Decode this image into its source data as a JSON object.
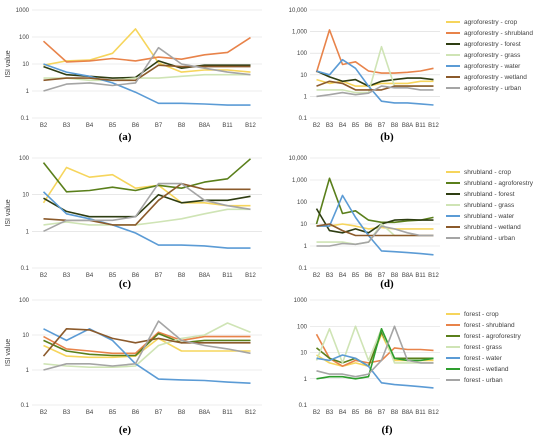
{
  "colors": {
    "crop": "#f6d55c",
    "shrubland": "#e8834a",
    "forest": "#2e3d12",
    "grass": "#cfe4b5",
    "water": "#5b9bd5",
    "wetland": "#8b5a2b",
    "urban": "#a5a5a5",
    "agroforestry": "#5a7f1b",
    "forest_green": "#2e9e2e"
  },
  "chart_data": [
    {
      "id": "a",
      "label": "(a)",
      "type": "line",
      "yscale": "log",
      "ylim": [
        0.1,
        1000
      ],
      "yticks": [
        "0.1",
        "1",
        "10",
        "100",
        "1000"
      ],
      "ylabel": "ISI value",
      "categories": [
        "B2",
        "B3",
        "B4",
        "B5",
        "B6",
        "B7",
        "B8",
        "B8A",
        "B11",
        "B12"
      ],
      "series": [
        {
          "color_key": "crop",
          "values": [
            9,
            13,
            14,
            25,
            200,
            11,
            5,
            6,
            6,
            5
          ]
        },
        {
          "color_key": "shrubland",
          "values": [
            70,
            12,
            13,
            16,
            13,
            18,
            15,
            22,
            27,
            95
          ]
        },
        {
          "color_key": "forest",
          "values": [
            8,
            4,
            3.5,
            3,
            3.2,
            13,
            7,
            9,
            9,
            9
          ]
        },
        {
          "color_key": "grass",
          "values": [
            3,
            3,
            2.5,
            2.5,
            3,
            3,
            3.5,
            4,
            4,
            4
          ]
        },
        {
          "color_key": "water",
          "values": [
            10,
            5,
            3.5,
            2,
            0.9,
            0.35,
            0.35,
            0.33,
            0.3,
            0.3
          ]
        },
        {
          "color_key": "wetland",
          "values": [
            2.5,
            3,
            3,
            2.5,
            2.5,
            9,
            8,
            8,
            8,
            8
          ]
        },
        {
          "color_key": "urban",
          "values": [
            1,
            1.8,
            2,
            1.6,
            2,
            40,
            10,
            7,
            5,
            4
          ]
        }
      ]
    },
    {
      "id": "b",
      "label": "(b)",
      "type": "line",
      "yscale": "log",
      "ylim": [
        0.1,
        10000
      ],
      "yticks": [
        "0.1",
        "1",
        "10",
        "100",
        "1,000",
        "10,000"
      ],
      "ylabel": "",
      "categories": [
        "B2",
        "B3",
        "B4",
        "B5",
        "B6",
        "B7",
        "B8",
        "B8A",
        "B11",
        "B12"
      ],
      "series": [
        {
          "color_key": "crop",
          "values": [
            6,
            4,
            5,
            3,
            3,
            4,
            4,
            4,
            5,
            5
          ]
        },
        {
          "color_key": "shrubland",
          "values": [
            13,
            1200,
            30,
            40,
            15,
            12,
            12,
            13,
            15,
            20
          ]
        },
        {
          "color_key": "forest",
          "values": [
            15,
            8,
            5,
            6,
            3,
            5,
            6,
            7,
            7,
            6
          ]
        },
        {
          "color_key": "grass",
          "values": [
            2,
            2,
            2,
            1.5,
            1.5,
            200,
            3,
            3,
            3,
            3
          ]
        },
        {
          "color_key": "water",
          "values": [
            15,
            10,
            50,
            20,
            3,
            0.6,
            0.5,
            0.5,
            0.45,
            0.4
          ]
        },
        {
          "color_key": "wetland",
          "values": [
            3,
            5,
            4,
            2,
            2,
            2,
            3,
            3,
            3,
            3
          ]
        },
        {
          "color_key": "urban",
          "values": [
            1,
            1.2,
            1.5,
            1.2,
            1.4,
            3,
            2.5,
            2.5,
            2,
            2
          ]
        }
      ],
      "legend": [
        "agroforestry - crop",
        "agroforestry - shrubland",
        "agroforestry - forest",
        "agroforestry - grass",
        "agroforestry - water",
        "agroforestry - wetland",
        "agroforestry - urban"
      ]
    },
    {
      "id": "c",
      "label": "(c)",
      "type": "line",
      "yscale": "log",
      "ylim": [
        0.1,
        100
      ],
      "yticks": [
        "0.1",
        "1",
        "10",
        "100"
      ],
      "ylabel": "ISI value",
      "categories": [
        "B2",
        "B3",
        "B4",
        "B5",
        "B6",
        "B7",
        "B8",
        "B8A",
        "B11",
        "B12"
      ],
      "series": [
        {
          "color_key": "crop",
          "values": [
            6,
            55,
            30,
            35,
            15,
            18,
            6,
            6,
            5,
            5
          ]
        },
        {
          "color_key": "agroforestry",
          "values": [
            75,
            12,
            13,
            16,
            13,
            18,
            15,
            22,
            27,
            95
          ]
        },
        {
          "color_key": "forest",
          "values": [
            8,
            3.5,
            2.5,
            2.5,
            2.5,
            10,
            6,
            7,
            7,
            9
          ]
        },
        {
          "color_key": "grass",
          "values": [
            1.5,
            1.8,
            1.5,
            1.5,
            1.5,
            1.8,
            2.2,
            3,
            4,
            4
          ]
        },
        {
          "color_key": "water",
          "values": [
            12,
            3,
            2.2,
            1.5,
            0.9,
            0.42,
            0.42,
            0.4,
            0.35,
            0.35
          ]
        },
        {
          "color_key": "wetland",
          "values": [
            2.2,
            2,
            2,
            1.5,
            1.5,
            7,
            20,
            14,
            14,
            14
          ]
        },
        {
          "color_key": "urban",
          "values": [
            1,
            2,
            2,
            2,
            2.5,
            20,
            20,
            7,
            5,
            4
          ]
        }
      ]
    },
    {
      "id": "d",
      "label": "(d)",
      "type": "line",
      "yscale": "log",
      "ylim": [
        0.1,
        10000
      ],
      "yticks": [
        "0.1",
        "1",
        "10",
        "100",
        "1,000",
        "10,000"
      ],
      "ylabel": "",
      "categories": [
        "B2",
        "B3",
        "B4",
        "B5",
        "B6",
        "B7",
        "B8",
        "B8A",
        "B11",
        "B12"
      ],
      "series": [
        {
          "color_key": "crop",
          "values": [
            8,
            8,
            10,
            8,
            6,
            7,
            6,
            6,
            6,
            6
          ]
        },
        {
          "color_key": "agroforestry",
          "values": [
            10,
            1200,
            30,
            40,
            15,
            12,
            12,
            14,
            15,
            20
          ]
        },
        {
          "color_key": "forest",
          "values": [
            50,
            5,
            4,
            6,
            4,
            10,
            15,
            16,
            15,
            15
          ]
        },
        {
          "color_key": "grass",
          "values": [
            1.5,
            1.5,
            1.5,
            1.2,
            1.5,
            10,
            3,
            3,
            3,
            3
          ]
        },
        {
          "color_key": "water",
          "values": [
            8,
            8,
            200,
            20,
            3,
            0.6,
            0.55,
            0.5,
            0.45,
            0.4
          ]
        },
        {
          "color_key": "wetland",
          "values": [
            8,
            10,
            5,
            3,
            3,
            3,
            3,
            3,
            3,
            3
          ]
        },
        {
          "color_key": "urban",
          "values": [
            1,
            1,
            1.3,
            1.2,
            1.5,
            8,
            6,
            4,
            3,
            3
          ]
        }
      ],
      "legend": [
        "shrubland - crop",
        "shrubland - agroforestry",
        "shrubland - forest",
        "shrubland - grass",
        "shrubland - water",
        "shrubland - wetland",
        "shrubland - urban"
      ]
    },
    {
      "id": "e",
      "label": "(e)",
      "type": "line",
      "yscale": "log",
      "ylim": [
        0.1,
        100
      ],
      "yticks": [
        "0.1",
        "1",
        "10",
        "100"
      ],
      "ylabel": "ISI value",
      "categories": [
        "B2",
        "B3",
        "B4",
        "B5",
        "B6",
        "B7",
        "B8",
        "B8A",
        "B11",
        "B12"
      ],
      "series": [
        {
          "color_key": "crop",
          "values": [
            5,
            2.5,
            2.3,
            2.3,
            2.5,
            8,
            3.5,
            3.5,
            3.5,
            3.5
          ]
        },
        {
          "color_key": "shrubland",
          "values": [
            9,
            4,
            3.5,
            3,
            3,
            12,
            7,
            9,
            9,
            9
          ]
        },
        {
          "color_key": "agroforestry",
          "values": [
            7,
            3.5,
            2.8,
            2.6,
            2.6,
            11,
            6,
            7,
            7,
            7
          ]
        },
        {
          "color_key": "grass",
          "values": [
            1.5,
            1.3,
            1.2,
            1.2,
            1.3,
            5,
            8,
            10,
            22,
            12
          ]
        },
        {
          "color_key": "water",
          "values": [
            15,
            7,
            15,
            7,
            1.5,
            0.55,
            0.52,
            0.5,
            0.45,
            0.42
          ]
        },
        {
          "color_key": "wetland",
          "values": [
            2.5,
            15,
            14,
            8,
            6,
            8,
            6,
            6,
            6,
            6
          ]
        },
        {
          "color_key": "urban",
          "values": [
            1,
            1.5,
            1.5,
            1.3,
            1.5,
            25,
            7,
            5,
            4,
            3
          ]
        }
      ]
    },
    {
      "id": "f",
      "label": "(f)",
      "type": "line",
      "yscale": "log",
      "ylim": [
        0.1,
        1000
      ],
      "yticks": [
        "0.1",
        "1",
        "10",
        "100",
        "1000"
      ],
      "ylabel": "",
      "categories": [
        "B2",
        "B3",
        "B4",
        "B5",
        "B6",
        "B7",
        "B8",
        "B8A",
        "B11",
        "B12"
      ],
      "series": [
        {
          "color_key": "crop",
          "values": [
            8,
            4,
            3,
            4,
            3,
            50,
            5,
            5,
            5,
            5
          ]
        },
        {
          "color_key": "shrubland",
          "values": [
            50,
            6,
            3,
            5,
            4,
            5,
            15,
            13,
            13,
            12
          ]
        },
        {
          "color_key": "agroforestry",
          "values": [
            15,
            6,
            4,
            6,
            3,
            60,
            6,
            6,
            6,
            6
          ]
        },
        {
          "color_key": "grass",
          "values": [
            5,
            80,
            4,
            100,
            5,
            80,
            4,
            4,
            4,
            4
          ]
        },
        {
          "color_key": "water",
          "values": [
            6,
            5,
            8,
            6,
            3,
            0.7,
            0.6,
            0.55,
            0.5,
            0.45
          ]
        },
        {
          "color_key": "forest_green",
          "values": [
            1,
            1.2,
            1.2,
            1,
            1.2,
            80,
            6,
            5,
            5,
            6
          ]
        },
        {
          "color_key": "urban",
          "values": [
            2,
            1.5,
            1.5,
            1.2,
            1.5,
            5,
            100,
            5,
            4,
            4
          ]
        }
      ],
      "legend": [
        "forest - crop",
        "forest - shrubland",
        "forest - agroforestry",
        "forest - grass",
        "forest - water",
        "forest - wetland",
        "forest - urban"
      ]
    }
  ]
}
